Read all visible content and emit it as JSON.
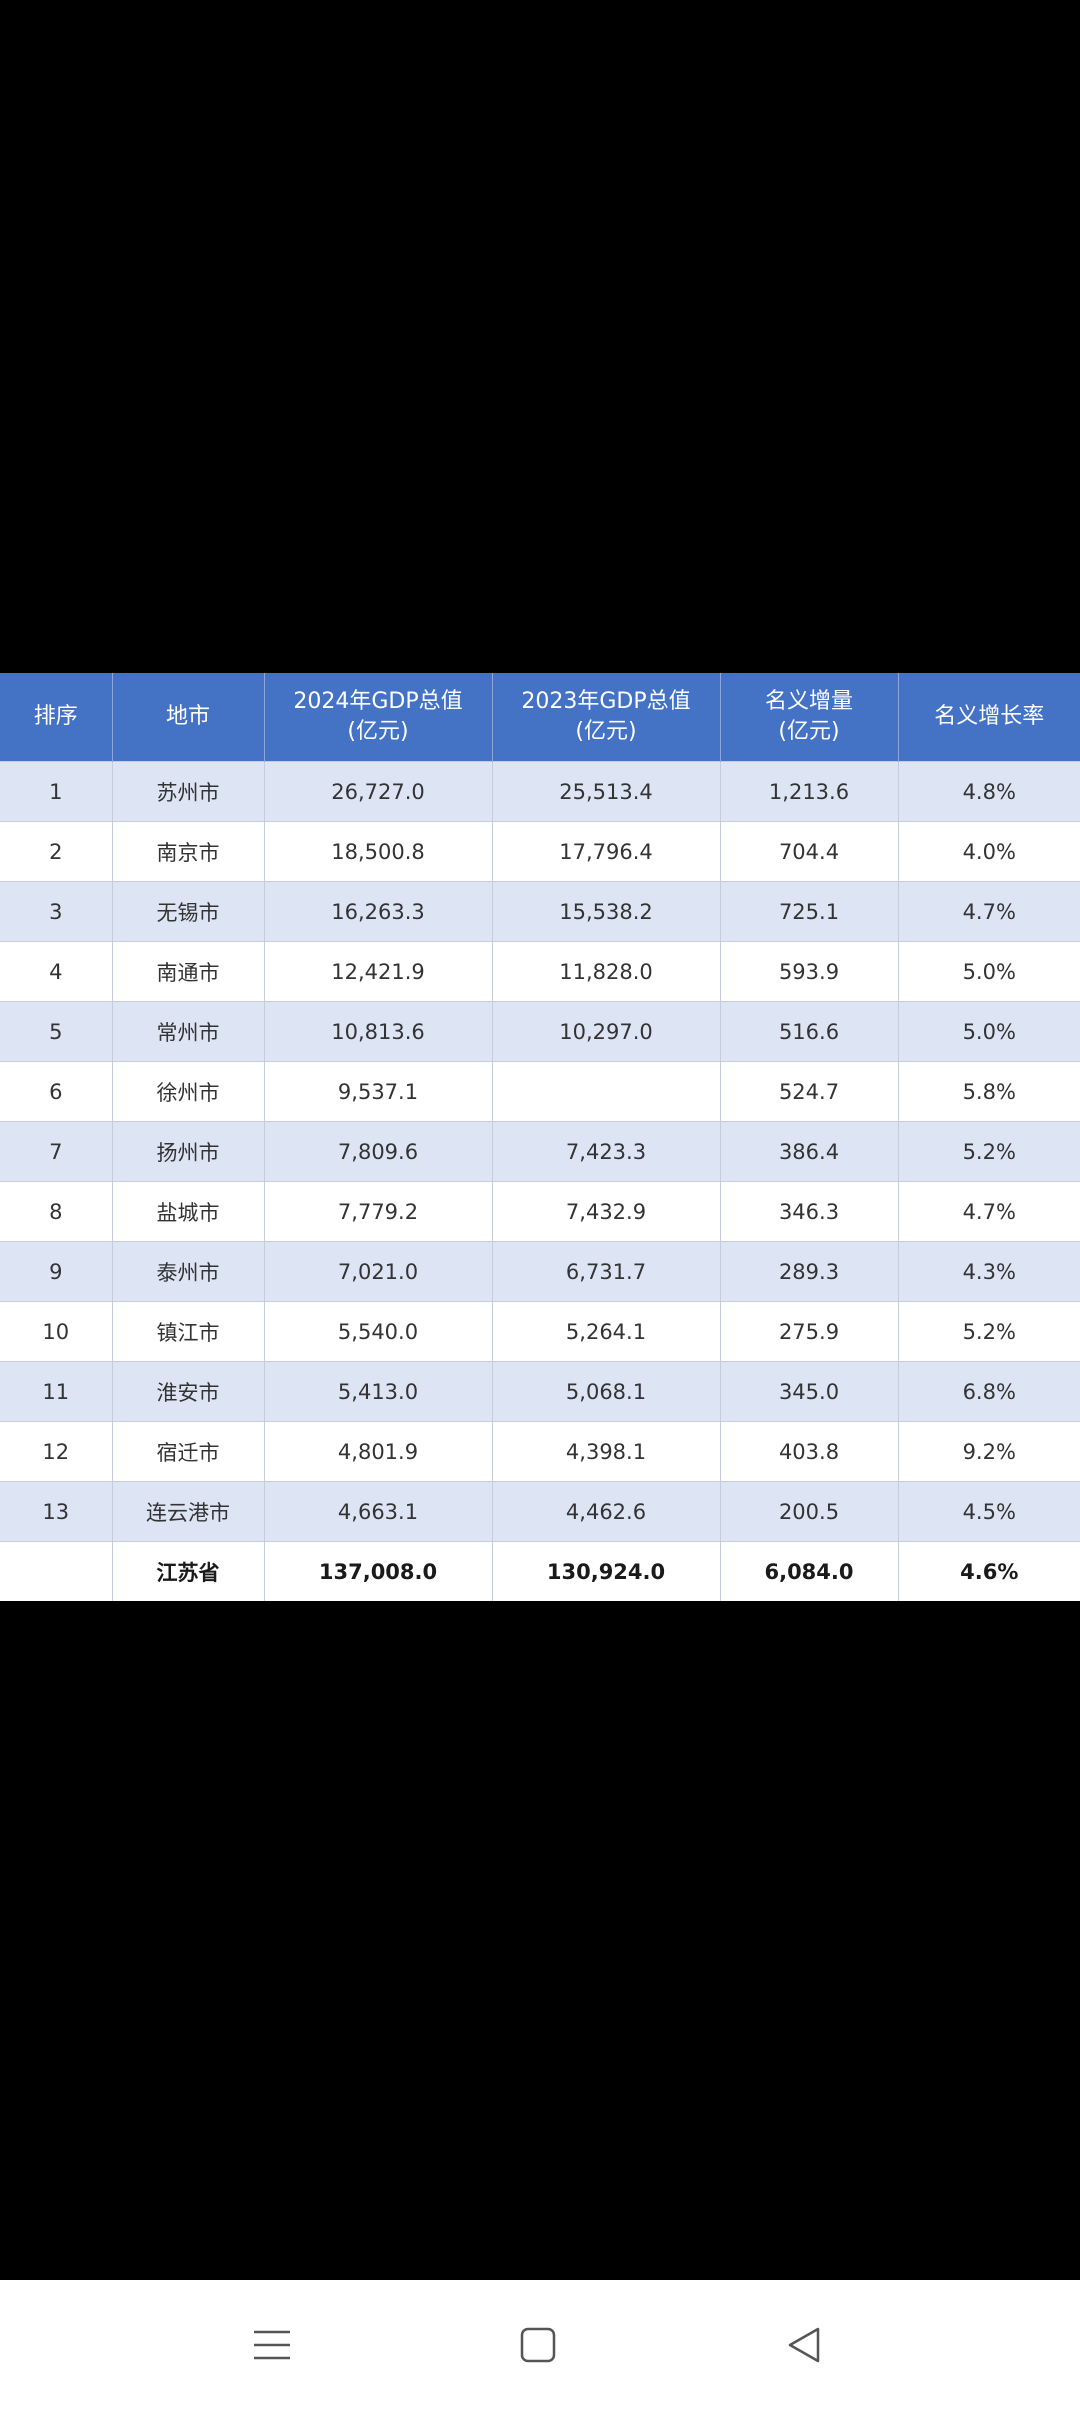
{
  "table": {
    "headers": [
      {
        "line1": "排序",
        "line2": ""
      },
      {
        "line1": "地市",
        "line2": ""
      },
      {
        "line1": "2024年GDP总值",
        "line2": "(亿元)"
      },
      {
        "line1": "2023年GDP总值",
        "line2": "(亿元)"
      },
      {
        "line1": "名义增量",
        "line2": "(亿元)"
      },
      {
        "line1": "名义增长率",
        "line2": ""
      }
    ],
    "rows": [
      {
        "rank": "1",
        "city": "苏州市",
        "gdp2024": "26,727.0",
        "gdp2023": "25,513.4",
        "increase": "1,213.6",
        "rate": "4.8%"
      },
      {
        "rank": "2",
        "city": "南京市",
        "gdp2024": "18,500.8",
        "gdp2023": "17,796.4",
        "increase": "704.4",
        "rate": "4.0%"
      },
      {
        "rank": "3",
        "city": "无锡市",
        "gdp2024": "16,263.3",
        "gdp2023": "15,538.2",
        "increase": "725.1",
        "rate": "4.7%"
      },
      {
        "rank": "4",
        "city": "南通市",
        "gdp2024": "12,421.9",
        "gdp2023": "11,828.0",
        "increase": "593.9",
        "rate": "5.0%"
      },
      {
        "rank": "5",
        "city": "常州市",
        "gdp2024": "10,813.6",
        "gdp2023": "10,297.0",
        "increase": "516.6",
        "rate": "5.0%"
      },
      {
        "rank": "6",
        "city": "徐州市",
        "gdp2024": "9,537.1",
        "gdp2023": "",
        "increase": "524.7",
        "rate": "5.8%"
      },
      {
        "rank": "7",
        "city": "扬州市",
        "gdp2024": "7,809.6",
        "gdp2023": "7,423.3",
        "increase": "386.4",
        "rate": "5.2%"
      },
      {
        "rank": "8",
        "city": "盐城市",
        "gdp2024": "7,779.2",
        "gdp2023": "7,432.9",
        "increase": "346.3",
        "rate": "4.7%"
      },
      {
        "rank": "9",
        "city": "泰州市",
        "gdp2024": "7,021.0",
        "gdp2023": "6,731.7",
        "increase": "289.3",
        "rate": "4.3%"
      },
      {
        "rank": "10",
        "city": "镇江市",
        "gdp2024": "5,540.0",
        "gdp2023": "5,264.1",
        "increase": "275.9",
        "rate": "5.2%"
      },
      {
        "rank": "11",
        "city": "淮安市",
        "gdp2024": "5,413.0",
        "gdp2023": "5,068.1",
        "increase": "345.0",
        "rate": "6.8%"
      },
      {
        "rank": "12",
        "city": "宿迁市",
        "gdp2024": "4,801.9",
        "gdp2023": "4,398.1",
        "increase": "403.8",
        "rate": "9.2%"
      },
      {
        "rank": "13",
        "city": "连云港市",
        "gdp2024": "4,663.1",
        "gdp2023": "4,462.6",
        "increase": "200.5",
        "rate": "4.5%"
      }
    ],
    "total": {
      "rank": "",
      "city": "江苏省",
      "gdp2024": "137,008.0",
      "gdp2023": "130,924.0",
      "increase": "6,084.0",
      "rate": "4.6%"
    }
  },
  "colors": {
    "header_bg": "#4472c4",
    "row_alt_bg": "#dde5f5",
    "screen_bg": "#000000",
    "navbar_bg": "#ffffff"
  },
  "navbar": {
    "icons": [
      "menu-icon",
      "home-square-icon",
      "back-triangle-icon"
    ]
  }
}
